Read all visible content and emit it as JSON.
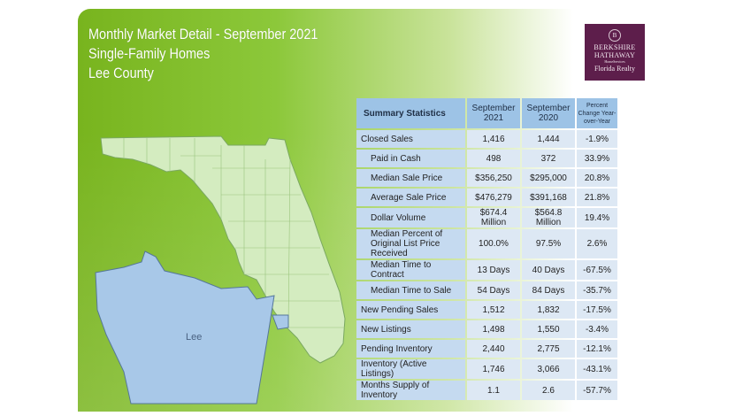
{
  "header": {
    "title_line1": "Monthly Market Detail - September 2021",
    "title_line2": "Single-Family Homes",
    "title_line3": "Lee County"
  },
  "logo": {
    "line1": "BERKSHIRE",
    "line2": "HATHAWAY",
    "line3": "HomeServices",
    "line4": "Florida Realty",
    "color": "#5d1e4b"
  },
  "map": {
    "county_label": "Lee",
    "state_color": "#d4ecc0",
    "county_color": "#a8c8e8"
  },
  "table": {
    "headers": [
      "Summary Statistics",
      "September 2021",
      "September 2020",
      "Percent Change Year-over-Year"
    ],
    "rows": [
      {
        "label": "Closed Sales",
        "indent": false,
        "v2021": "1,416",
        "v2020": "1,444",
        "change": "-1.9%"
      },
      {
        "label": "Paid in Cash",
        "indent": true,
        "v2021": "498",
        "v2020": "372",
        "change": "33.9%"
      },
      {
        "label": "Median Sale Price",
        "indent": true,
        "v2021": "$356,250",
        "v2020": "$295,000",
        "change": "20.8%"
      },
      {
        "label": "Average Sale Price",
        "indent": true,
        "v2021": "$476,279",
        "v2020": "$391,168",
        "change": "21.8%"
      },
      {
        "label": "Dollar Volume",
        "indent": true,
        "v2021": "$674.4 Million",
        "v2020": "$564.8 Million",
        "change": "19.4%"
      },
      {
        "label": "Median Percent of Original List Price Received",
        "indent": true,
        "v2021": "100.0%",
        "v2020": "97.5%",
        "change": "2.6%"
      },
      {
        "label": "Median Time to Contract",
        "indent": true,
        "v2021": "13 Days",
        "v2020": "40 Days",
        "change": "-67.5%"
      },
      {
        "label": "Median Time to Sale",
        "indent": true,
        "v2021": "54 Days",
        "v2020": "84 Days",
        "change": "-35.7%"
      },
      {
        "label": "New Pending Sales",
        "indent": false,
        "v2021": "1,512",
        "v2020": "1,832",
        "change": "-17.5%"
      },
      {
        "label": "New Listings",
        "indent": false,
        "v2021": "1,498",
        "v2020": "1,550",
        "change": "-3.4%"
      },
      {
        "label": "Pending Inventory",
        "indent": false,
        "v2021": "2,440",
        "v2020": "2,775",
        "change": "-12.1%"
      },
      {
        "label": "Inventory (Active Listings)",
        "indent": false,
        "v2021": "1,746",
        "v2020": "3,066",
        "change": "-43.1%"
      },
      {
        "label": "Months Supply of Inventory",
        "indent": false,
        "v2021": "1.1",
        "v2020": "2.6",
        "change": "-57.7%"
      }
    ]
  }
}
